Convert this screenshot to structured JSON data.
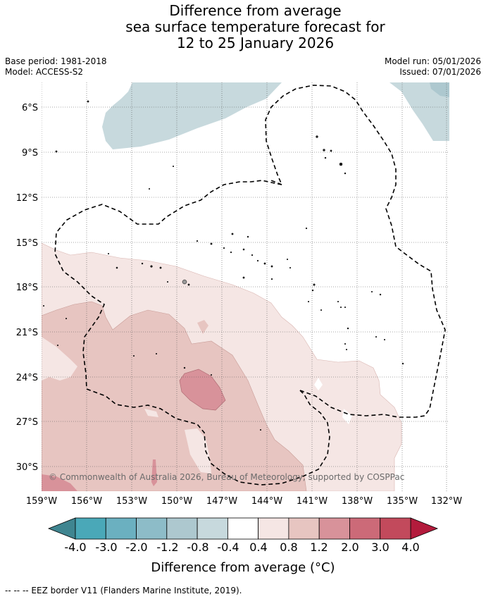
{
  "title": {
    "line1": "Difference from average",
    "line2": "sea surface temperature forecast for",
    "line3": "12 to 25 January 2026"
  },
  "meta": {
    "base_period": "Base period: 1981-2018",
    "model": "Model: ACCESS-S2",
    "model_run": "Model run: 05/01/2026",
    "issued": "Issued: 07/01/2026"
  },
  "map": {
    "lat_labels": [
      "6°S",
      "9°S",
      "12°S",
      "15°S",
      "18°S",
      "21°S",
      "24°S",
      "27°S",
      "30°S"
    ],
    "lon_labels": [
      "159°W",
      "156°W",
      "153°W",
      "150°W",
      "147°W",
      "144°W",
      "141°W",
      "138°W",
      "135°W",
      "132°W"
    ],
    "copyright": "© Commonwealth of Australia 2026, Bureau of Meteorology, supported by COSPPac"
  },
  "colorbar": {
    "ticks": [
      "-4.0",
      "-3.0",
      "-2.0",
      "-1.2",
      "-0.8",
      "-0.4",
      "0.4",
      "0.8",
      "1.2",
      "2.0",
      "3.0",
      "4.0"
    ],
    "colors": [
      "#3f8590",
      "#4aa8b8",
      "#6bb0c0",
      "#8dbcc8",
      "#adc8cf",
      "#c7d9dd",
      "#ffffff",
      "#f5e6e4",
      "#e7c5c1",
      "#d8929a",
      "#cc6a78",
      "#c24a5c",
      "#b31b3c"
    ],
    "title": "Difference from average (°C)"
  },
  "footnote": "--  --  -- EEZ border V11 (Flanders Marine Institute, 2019)."
}
